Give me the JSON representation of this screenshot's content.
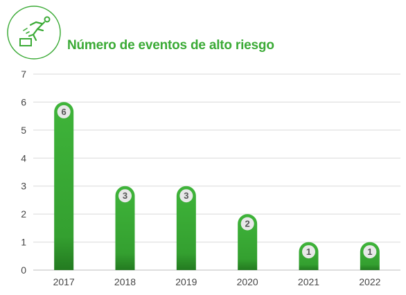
{
  "title": "Número de eventos de alto riesgo",
  "logo_icon": "falling-person-icon",
  "colors": {
    "accent": "#3aaa35",
    "bar": "#3aaa35",
    "grid": "#d9d9d9",
    "badge_bg": "#e8e8e8",
    "badge_text": "#555555"
  },
  "chart_data": {
    "type": "bar",
    "title": "Número de eventos de alto riesgo",
    "categories": [
      "2017",
      "2018",
      "2019",
      "2020",
      "2021",
      "2022"
    ],
    "values": [
      6,
      3,
      3,
      2,
      1,
      1
    ],
    "data_labels": [
      "6",
      "3",
      "3",
      "2",
      "1",
      "1"
    ],
    "ylim": [
      0,
      7
    ],
    "yticks": [
      "0",
      "1",
      "2",
      "3",
      "4",
      "5",
      "6",
      "7"
    ],
    "xlabel": "",
    "ylabel": "",
    "grid": true,
    "legend": "none"
  }
}
